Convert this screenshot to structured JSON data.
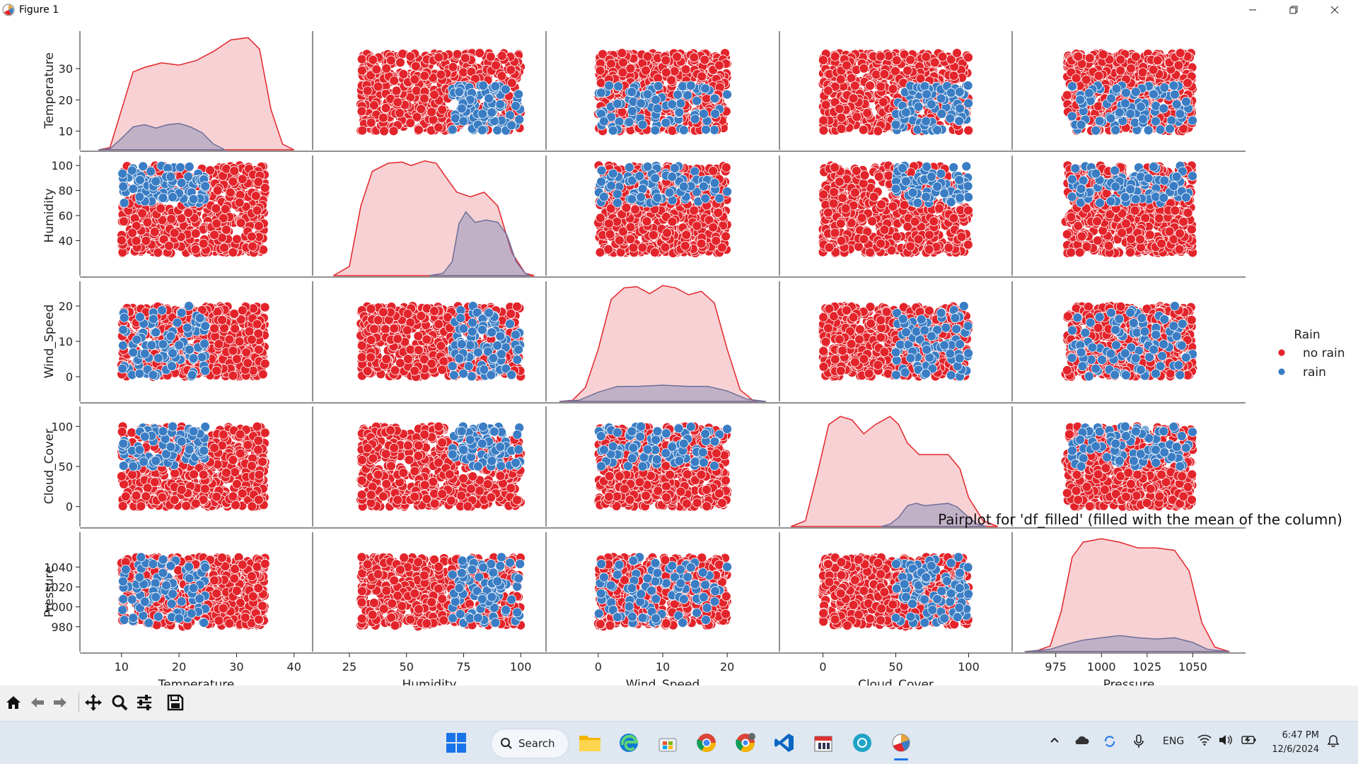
{
  "window": {
    "title": "Figure 1"
  },
  "figure": {
    "suptitle": "Pairplot for 'df_filled' (filled with the mean of the column)",
    "legend_title": "Rain",
    "legend_items": [
      "no rain",
      "rain"
    ]
  },
  "colors": {
    "no_rain": "#e3242b",
    "rain": "#3a7dc4",
    "kde_fill": "#f4c2c4"
  },
  "chart_data": {
    "type": "pairplot",
    "variables": [
      "Temperature",
      "Humidity",
      "Wind_Speed",
      "Cloud_Cover",
      "Pressure"
    ],
    "hue": "Rain",
    "hue_levels": [
      "no rain",
      "rain"
    ],
    "axes": {
      "Temperature": {
        "range": [
          4,
          42
        ],
        "ticks": [
          10,
          20,
          30,
          40
        ],
        "y_ticks": [
          10,
          20,
          30
        ],
        "data_range": [
          10,
          35
        ],
        "rain_range": [
          10,
          25
        ]
      },
      "Humidity": {
        "range": [
          12,
          108
        ],
        "ticks": [
          25,
          50,
          75,
          100
        ],
        "y_ticks": [
          40,
          60,
          80,
          100
        ],
        "data_range": [
          30,
          100
        ],
        "rain_range": [
          70,
          100
        ]
      },
      "Wind_Speed": {
        "range": [
          -7,
          27
        ],
        "ticks": [
          0,
          10,
          20
        ],
        "y_ticks": [
          0,
          10,
          20
        ],
        "data_range": [
          0,
          20
        ],
        "rain_range": [
          0,
          20
        ]
      },
      "Cloud_Cover": {
        "range": [
          -25,
          125
        ],
        "ticks": [
          0,
          50,
          100
        ],
        "y_ticks": [
          0,
          50,
          100
        ],
        "data_range": [
          0,
          100
        ],
        "rain_range": [
          50,
          100
        ]
      },
      "Pressure": {
        "range": [
          955,
          1075
        ],
        "ticks": [
          975,
          1000,
          1025,
          1050
        ],
        "y_ticks": [
          980,
          1000,
          1020,
          1040
        ],
        "data_range": [
          980,
          1050
        ],
        "rain_range": [
          980,
          1050
        ]
      }
    },
    "kde": {
      "Temperature": {
        "no_rain": [
          [
            6,
            0
          ],
          [
            8,
            0.02
          ],
          [
            10,
            0.35
          ],
          [
            12,
            0.68
          ],
          [
            14,
            0.72
          ],
          [
            17,
            0.76
          ],
          [
            20,
            0.74
          ],
          [
            23,
            0.78
          ],
          [
            26,
            0.86
          ],
          [
            29,
            0.96
          ],
          [
            32,
            0.98
          ],
          [
            34,
            0.88
          ],
          [
            36,
            0.35
          ],
          [
            38,
            0.05
          ],
          [
            40,
            0
          ]
        ],
        "rain": [
          [
            6,
            0
          ],
          [
            8,
            0.01
          ],
          [
            10,
            0.1
          ],
          [
            12,
            0.2
          ],
          [
            14,
            0.22
          ],
          [
            16,
            0.19
          ],
          [
            18,
            0.22
          ],
          [
            20,
            0.23
          ],
          [
            22,
            0.2
          ],
          [
            24,
            0.15
          ],
          [
            26,
            0.05
          ],
          [
            28,
            0
          ]
        ]
      },
      "Humidity": {
        "no_rain": [
          [
            18,
            0
          ],
          [
            25,
            0.08
          ],
          [
            30,
            0.6
          ],
          [
            35,
            0.9
          ],
          [
            42,
            0.97
          ],
          [
            48,
            0.98
          ],
          [
            52,
            0.95
          ],
          [
            58,
            0.99
          ],
          [
            63,
            0.97
          ],
          [
            68,
            0.83
          ],
          [
            72,
            0.72
          ],
          [
            78,
            0.68
          ],
          [
            84,
            0.72
          ],
          [
            90,
            0.6
          ],
          [
            96,
            0.2
          ],
          [
            102,
            0.02
          ],
          [
            106,
            0
          ]
        ],
        "rain": [
          [
            60,
            0
          ],
          [
            66,
            0.02
          ],
          [
            70,
            0.12
          ],
          [
            73,
            0.45
          ],
          [
            76,
            0.55
          ],
          [
            80,
            0.46
          ],
          [
            85,
            0.48
          ],
          [
            90,
            0.46
          ],
          [
            94,
            0.35
          ],
          [
            98,
            0.12
          ],
          [
            102,
            0.02
          ],
          [
            104,
            0
          ]
        ]
      },
      "Wind_Speed": {
        "no_rain": [
          [
            -6,
            0
          ],
          [
            -4,
            0.01
          ],
          [
            -2,
            0.12
          ],
          [
            0,
            0.45
          ],
          [
            2,
            0.88
          ],
          [
            4,
            0.98
          ],
          [
            6,
            0.99
          ],
          [
            8,
            0.93
          ],
          [
            10,
            1.0
          ],
          [
            12,
            0.98
          ],
          [
            14,
            0.92
          ],
          [
            16,
            0.95
          ],
          [
            18,
            0.85
          ],
          [
            20,
            0.45
          ],
          [
            22,
            0.1
          ],
          [
            24,
            0.01
          ],
          [
            26,
            0
          ]
        ],
        "rain": [
          [
            -6,
            0
          ],
          [
            -3,
            0.01
          ],
          [
            0,
            0.08
          ],
          [
            3,
            0.13
          ],
          [
            6,
            0.13
          ],
          [
            10,
            0.14
          ],
          [
            14,
            0.13
          ],
          [
            17,
            0.13
          ],
          [
            20,
            0.09
          ],
          [
            23,
            0.02
          ],
          [
            26,
            0
          ]
        ]
      },
      "Cloud_Cover": {
        "no_rain": [
          [
            -22,
            0
          ],
          [
            -12,
            0.05
          ],
          [
            -4,
            0.45
          ],
          [
            4,
            0.88
          ],
          [
            12,
            0.95
          ],
          [
            20,
            0.92
          ],
          [
            28,
            0.8
          ],
          [
            36,
            0.88
          ],
          [
            46,
            0.95
          ],
          [
            52,
            0.88
          ],
          [
            58,
            0.72
          ],
          [
            66,
            0.62
          ],
          [
            76,
            0.62
          ],
          [
            86,
            0.62
          ],
          [
            94,
            0.5
          ],
          [
            100,
            0.25
          ],
          [
            110,
            0.05
          ],
          [
            120,
            0
          ]
        ],
        "rain": [
          [
            40,
            0
          ],
          [
            46,
            0.02
          ],
          [
            52,
            0.08
          ],
          [
            58,
            0.18
          ],
          [
            64,
            0.2
          ],
          [
            70,
            0.18
          ],
          [
            78,
            0.19
          ],
          [
            86,
            0.2
          ],
          [
            92,
            0.17
          ],
          [
            100,
            0.08
          ],
          [
            106,
            0.02
          ],
          [
            112,
            0
          ]
        ]
      },
      "Pressure": {
        "no_rain": [
          [
            958,
            0
          ],
          [
            965,
            0.01
          ],
          [
            972,
            0.05
          ],
          [
            978,
            0.35
          ],
          [
            984,
            0.82
          ],
          [
            990,
            0.95
          ],
          [
            1000,
            0.98
          ],
          [
            1010,
            0.95
          ],
          [
            1020,
            0.9
          ],
          [
            1030,
            0.9
          ],
          [
            1040,
            0.88
          ],
          [
            1048,
            0.7
          ],
          [
            1055,
            0.25
          ],
          [
            1062,
            0.04
          ],
          [
            1070,
            0
          ]
        ],
        "rain": [
          [
            958,
            0
          ],
          [
            972,
            0.02
          ],
          [
            980,
            0.06
          ],
          [
            990,
            0.1
          ],
          [
            1000,
            0.12
          ],
          [
            1010,
            0.14
          ],
          [
            1020,
            0.12
          ],
          [
            1030,
            0.11
          ],
          [
            1040,
            0.12
          ],
          [
            1050,
            0.08
          ],
          [
            1058,
            0.02
          ],
          [
            1070,
            0
          ]
        ]
      }
    }
  },
  "toolbar": {
    "buttons": [
      "home-icon",
      "back-icon",
      "forward-icon",
      "pan-icon",
      "zoom-icon",
      "configure-icon",
      "save-icon"
    ]
  },
  "taskbar": {
    "search_label": "Search",
    "language": "ENG",
    "time": "6:47 PM",
    "date": "12/6/2024"
  }
}
